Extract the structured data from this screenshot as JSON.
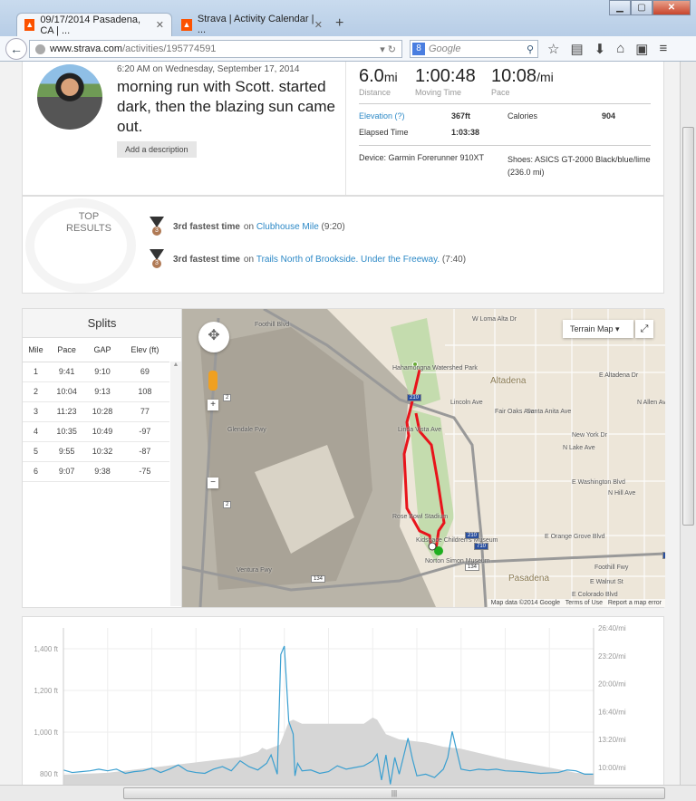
{
  "browser": {
    "tabs": [
      {
        "label": "09/17/2014 Pasadena, CA | ...",
        "active": true
      },
      {
        "label": "Strava | Activity Calendar | ...",
        "active": false
      }
    ],
    "url_domain": "www.strava.com",
    "url_path": "/activities/195774591",
    "search_placeholder": "Google"
  },
  "activity": {
    "datetime": "6:20 AM on Wednesday, September 17, 2014",
    "title": "morning run with Scott. started dark, then the blazing sun came out.",
    "add_description_label": "Add a description",
    "distance": "6.0",
    "distance_unit": "mi",
    "distance_label": "Distance",
    "moving_time": "1:00:48",
    "moving_time_label": "Moving Time",
    "pace": "10:08",
    "pace_unit": "/mi",
    "pace_label": "Pace",
    "elevation_label": "Elevation (?)",
    "elevation": "367ft",
    "calories_label": "Calories",
    "calories": "904",
    "elapsed_label": "Elapsed Time",
    "elapsed": "1:03:38",
    "device": "Device: Garmin Forerunner 910XT",
    "shoes": "Shoes: ASICS GT-2000 Black/blue/lime (236.0 mi)"
  },
  "top_results": {
    "title": "TOP RESULTS",
    "items": [
      {
        "rank_text": "3rd fastest time",
        "on": "on",
        "segment": "Clubhouse Mile",
        "time": "(9:20)"
      },
      {
        "rank_text": "3rd fastest time",
        "on": "on",
        "segment": "Trails North of Brookside. Under the Freeway.",
        "time": "(7:40)"
      }
    ]
  },
  "splits": {
    "title": "Splits",
    "columns": [
      "Mile",
      "Pace",
      "GAP",
      "Elev (ft)"
    ],
    "rows": [
      [
        "1",
        "9:41",
        "9:10",
        "69"
      ],
      [
        "2",
        "10:04",
        "9:13",
        "108"
      ],
      [
        "3",
        "11:23",
        "10:28",
        "77"
      ],
      [
        "4",
        "10:35",
        "10:49",
        "-97"
      ],
      [
        "5",
        "9:55",
        "10:32",
        "-87"
      ],
      [
        "6",
        "9:07",
        "9:38",
        "-75"
      ]
    ]
  },
  "map": {
    "type_label": "Terrain Map",
    "labels": [
      "Hahamongna Watershed Park",
      "Rose Bowl Stadium",
      "Kidspace Children's Museum",
      "Norton Simon Museum",
      "Altadena",
      "Pasadena",
      "New York Dr",
      "E Washington Blvd",
      "E Orange Grove Blvd",
      "Foothill Fwy",
      "E Walnut St",
      "E Colorado Blvd",
      "Foothill Blvd",
      "W Loma Alta Dr",
      "E Altadena Dr",
      "Lincoln Ave",
      "Fair Oaks Ave",
      "Santa Anita Ave",
      "N Lake Ave",
      "N Allen Ave",
      "N Hill Ave",
      "Glendale Fwy",
      "Ventura Fwy",
      "Linda Vista Ave"
    ],
    "shields": [
      "210",
      "2",
      "2",
      "210",
      "710",
      "134",
      "134",
      "210"
    ],
    "attribution": "Map data ©2014 Google",
    "terms": "Terms of Use",
    "report": "Report a map error",
    "route_color": "#e8141b",
    "start_color": "#1fae1f"
  },
  "chart_data": {
    "type": "line",
    "x_unit": "mi",
    "xlim": [
      0,
      6
    ],
    "elevation": {
      "type": "area",
      "color": "#d6d6d6",
      "axis": "left",
      "ticks": [
        "800 ft",
        "1,000 ft",
        "1,200 ft",
        "1,400 ft"
      ],
      "points": [
        [
          0,
          795
        ],
        [
          0.5,
          805
        ],
        [
          1,
          830
        ],
        [
          1.5,
          855
        ],
        [
          2.0,
          880
        ],
        [
          2.2,
          905
        ],
        [
          2.25,
          925
        ],
        [
          2.3,
          915
        ],
        [
          2.45,
          940
        ],
        [
          2.55,
          1050
        ],
        [
          2.6,
          1060
        ],
        [
          2.7,
          1040
        ],
        [
          3.4,
          1040
        ],
        [
          3.5,
          1070
        ],
        [
          3.55,
          1060
        ],
        [
          3.65,
          990
        ],
        [
          3.8,
          965
        ],
        [
          4.1,
          950
        ],
        [
          4.3,
          930
        ],
        [
          4.5,
          920
        ],
        [
          5,
          870
        ],
        [
          5.5,
          830
        ],
        [
          5.8,
          805
        ],
        [
          6,
          800
        ]
      ]
    },
    "pace": {
      "type": "line",
      "color": "#3a9fd0",
      "axis": "right",
      "ticks": [
        "10:00/mi",
        "13:20/mi",
        "16:40/mi",
        "20:00/mi",
        "23:20/mi",
        "26:40/mi"
      ],
      "points": [
        [
          0,
          "9:42"
        ],
        [
          0.1,
          "9:24"
        ],
        [
          0.2,
          "9:30"
        ],
        [
          0.3,
          "9:36"
        ],
        [
          0.4,
          "9:48"
        ],
        [
          0.5,
          "9:36"
        ],
        [
          0.6,
          "9:48"
        ],
        [
          0.7,
          "9:18"
        ],
        [
          0.8,
          "9:30"
        ],
        [
          0.9,
          "9:36"
        ],
        [
          1.0,
          "9:54"
        ],
        [
          1.1,
          "9:24"
        ],
        [
          1.2,
          "9:48"
        ],
        [
          1.3,
          "10:18"
        ],
        [
          1.4,
          "9:36"
        ],
        [
          1.5,
          "9:24"
        ],
        [
          1.6,
          "9:18"
        ],
        [
          1.7,
          "9:48"
        ],
        [
          1.8,
          "10:06"
        ],
        [
          1.9,
          "9:36"
        ],
        [
          2.0,
          "10:48"
        ],
        [
          2.1,
          "10:06"
        ],
        [
          2.2,
          "9:42"
        ],
        [
          2.3,
          "10:30"
        ],
        [
          2.35,
          "11:30"
        ],
        [
          2.42,
          "9:12"
        ],
        [
          2.46,
          "23:30"
        ],
        [
          2.5,
          "24:30"
        ],
        [
          2.55,
          "15:30"
        ],
        [
          2.6,
          "14:00"
        ],
        [
          2.62,
          "9:00"
        ],
        [
          2.65,
          "10:30"
        ],
        [
          2.7,
          "9:36"
        ],
        [
          2.8,
          "9:42"
        ],
        [
          2.9,
          "9:18"
        ],
        [
          3.0,
          "9:30"
        ],
        [
          3.1,
          "10:12"
        ],
        [
          3.2,
          "9:48"
        ],
        [
          3.3,
          "10:00"
        ],
        [
          3.4,
          "10:12"
        ],
        [
          3.5,
          "10:48"
        ],
        [
          3.55,
          "11:36"
        ],
        [
          3.6,
          "8:30"
        ],
        [
          3.65,
          "11:30"
        ],
        [
          3.7,
          "8:00"
        ],
        [
          3.75,
          "11:12"
        ],
        [
          3.8,
          "9:12"
        ],
        [
          3.9,
          "13:30"
        ],
        [
          3.95,
          "11:00"
        ],
        [
          4.0,
          "9:00"
        ],
        [
          4.1,
          "9:12"
        ],
        [
          4.2,
          "8:48"
        ],
        [
          4.3,
          "9:48"
        ],
        [
          4.35,
          "11:12"
        ],
        [
          4.4,
          "14:18"
        ],
        [
          4.45,
          "12:00"
        ],
        [
          4.5,
          "9:48"
        ],
        [
          4.6,
          "9:36"
        ],
        [
          4.7,
          "9:48"
        ],
        [
          4.8,
          "9:42"
        ],
        [
          4.9,
          "9:48"
        ],
        [
          5.0,
          "9:36"
        ],
        [
          5.2,
          "9:30"
        ],
        [
          5.4,
          "9:18"
        ],
        [
          5.6,
          "9:24"
        ],
        [
          5.7,
          "9:42"
        ],
        [
          5.8,
          "9:36"
        ],
        [
          5.9,
          "9:12"
        ],
        [
          6.0,
          "9:12"
        ]
      ]
    }
  }
}
